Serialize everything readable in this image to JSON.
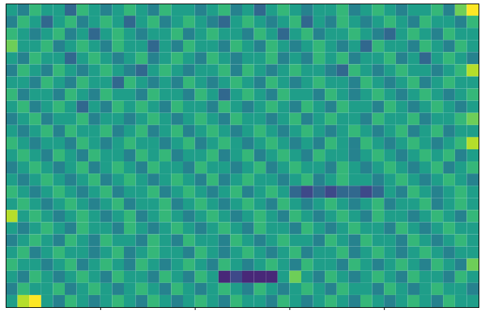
{
  "chart_data": {
    "type": "heatmap",
    "cells": [
      [
        5,
        4,
        6,
        5,
        5,
        3,
        6,
        5,
        4,
        5,
        6,
        5,
        4,
        6,
        5,
        5,
        4,
        5,
        6,
        4,
        5,
        3,
        5,
        6,
        5,
        4,
        5,
        5,
        6,
        4,
        5,
        6,
        5,
        4,
        5,
        5,
        6,
        4,
        7,
        9
      ],
      [
        4,
        6,
        5,
        3,
        5,
        6,
        4,
        5,
        6,
        5,
        3,
        5,
        6,
        4,
        5,
        6,
        5,
        4,
        3,
        5,
        6,
        5,
        4,
        5,
        6,
        3,
        5,
        4,
        6,
        5,
        4,
        5,
        6,
        5,
        4,
        6,
        5,
        5,
        4,
        6
      ],
      [
        6,
        5,
        4,
        5,
        6,
        4,
        5,
        3,
        5,
        6,
        5,
        4,
        5,
        5,
        6,
        4,
        5,
        6,
        5,
        5,
        4,
        6,
        5,
        3,
        5,
        6,
        4,
        5,
        5,
        6,
        5,
        4,
        3,
        5,
        6,
        5,
        4,
        6,
        5,
        5
      ],
      [
        7,
        5,
        5,
        6,
        4,
        5,
        6,
        5,
        4,
        6,
        5,
        5,
        3,
        5,
        4,
        6,
        5,
        5,
        4,
        6,
        5,
        4,
        6,
        5,
        4,
        5,
        6,
        5,
        4,
        5,
        3,
        6,
        5,
        5,
        4,
        6,
        5,
        4,
        6,
        5
      ],
      [
        5,
        4,
        6,
        5,
        5,
        3,
        5,
        6,
        5,
        4,
        5,
        6,
        4,
        5,
        6,
        5,
        4,
        6,
        5,
        4,
        5,
        5,
        6,
        4,
        5,
        4,
        6,
        5,
        6,
        4,
        5,
        5,
        6,
        4,
        5,
        3,
        5,
        6,
        5,
        4
      ],
      [
        4,
        6,
        5,
        4,
        6,
        5,
        4,
        5,
        6,
        5,
        4,
        3,
        5,
        6,
        5,
        4,
        5,
        5,
        6,
        4,
        6,
        5,
        4,
        5,
        6,
        5,
        5,
        4,
        3,
        6,
        5,
        4,
        5,
        6,
        5,
        5,
        4,
        5,
        6,
        8
      ],
      [
        5,
        5,
        4,
        6,
        5,
        4,
        6,
        5,
        5,
        3,
        6,
        5,
        4,
        5,
        4,
        6,
        5,
        4,
        5,
        6,
        5,
        4,
        6,
        5,
        4,
        5,
        6,
        5,
        5,
        4,
        6,
        5,
        4,
        5,
        6,
        4,
        5,
        6,
        5,
        5
      ],
      [
        6,
        4,
        5,
        5,
        4,
        6,
        5,
        4,
        6,
        5,
        5,
        4,
        6,
        5,
        5,
        4,
        6,
        5,
        3,
        5,
        6,
        5,
        4,
        6,
        5,
        5,
        4,
        6,
        5,
        4,
        5,
        6,
        5,
        4,
        5,
        6,
        5,
        4,
        5,
        6
      ],
      [
        5,
        6,
        4,
        5,
        6,
        5,
        3,
        5,
        4,
        6,
        5,
        6,
        5,
        4,
        6,
        5,
        5,
        4,
        6,
        5,
        4,
        5,
        6,
        5,
        4,
        6,
        5,
        4,
        6,
        5,
        5,
        4,
        6,
        5,
        4,
        5,
        6,
        5,
        4,
        5
      ],
      [
        4,
        5,
        6,
        4,
        5,
        5,
        6,
        4,
        5,
        5,
        4,
        5,
        6,
        5,
        4,
        5,
        6,
        5,
        4,
        6,
        5,
        5,
        4,
        5,
        6,
        4,
        5,
        6,
        5,
        5,
        4,
        6,
        5,
        5,
        6,
        4,
        5,
        5,
        6,
        7
      ],
      [
        5,
        4,
        5,
        6,
        4,
        6,
        5,
        5,
        6,
        4,
        5,
        6,
        4,
        5,
        6,
        4,
        5,
        6,
        5,
        4,
        5,
        6,
        5,
        4,
        5,
        6,
        5,
        4,
        5,
        6,
        5,
        4,
        5,
        6,
        4,
        5,
        6,
        4,
        5,
        5
      ],
      [
        6,
        5,
        4,
        5,
        5,
        4,
        6,
        5,
        4,
        5,
        6,
        5,
        5,
        4,
        5,
        6,
        4,
        5,
        6,
        5,
        4,
        5,
        6,
        5,
        4,
        5,
        4,
        6,
        5,
        4,
        6,
        5,
        4,
        5,
        6,
        5,
        4,
        5,
        6,
        8
      ],
      [
        5,
        6,
        5,
        4,
        6,
        5,
        4,
        6,
        5,
        5,
        4,
        6,
        5,
        6,
        4,
        5,
        5,
        6,
        4,
        5,
        6,
        4,
        5,
        6,
        5,
        4,
        6,
        5,
        5,
        4,
        5,
        6,
        5,
        4,
        5,
        6,
        5,
        6,
        4,
        5
      ],
      [
        4,
        5,
        6,
        5,
        4,
        5,
        6,
        4,
        5,
        6,
        5,
        4,
        6,
        5,
        5,
        4,
        6,
        5,
        5,
        4,
        5,
        6,
        4,
        5,
        6,
        5,
        5,
        4,
        6,
        5,
        4,
        5,
        6,
        5,
        4,
        5,
        6,
        4,
        5,
        6
      ],
      [
        5,
        4,
        5,
        6,
        5,
        4,
        5,
        6,
        4,
        5,
        6,
        5,
        4,
        5,
        6,
        5,
        4,
        6,
        4,
        5,
        6,
        5,
        5,
        4,
        5,
        6,
        4,
        5,
        6,
        5,
        5,
        4,
        5,
        6,
        5,
        4,
        5,
        6,
        5,
        4
      ],
      [
        6,
        5,
        4,
        5,
        6,
        5,
        4,
        5,
        6,
        4,
        5,
        5,
        6,
        4,
        5,
        6,
        5,
        4,
        5,
        6,
        4,
        5,
        6,
        5,
        3,
        2,
        3,
        2,
        3,
        3,
        2,
        3,
        5,
        4,
        6,
        5,
        4,
        5,
        6,
        5
      ],
      [
        5,
        6,
        5,
        4,
        5,
        6,
        5,
        4,
        5,
        6,
        4,
        5,
        5,
        6,
        4,
        5,
        6,
        5,
        4,
        5,
        6,
        5,
        4,
        6,
        5,
        4,
        5,
        6,
        5,
        4,
        5,
        6,
        4,
        5,
        5,
        6,
        4,
        5,
        6,
        5
      ],
      [
        8,
        5,
        6,
        5,
        4,
        5,
        6,
        5,
        4,
        5,
        6,
        4,
        5,
        6,
        5,
        4,
        5,
        6,
        5,
        4,
        5,
        6,
        5,
        4,
        6,
        5,
        4,
        5,
        6,
        5,
        4,
        6,
        5,
        5,
        4,
        5,
        6,
        5,
        4,
        6
      ],
      [
        5,
        4,
        5,
        6,
        5,
        4,
        6,
        5,
        5,
        4,
        6,
        5,
        4,
        5,
        6,
        5,
        4,
        5,
        6,
        5,
        4,
        6,
        5,
        5,
        4,
        6,
        5,
        4,
        5,
        6,
        5,
        5,
        4,
        6,
        5,
        4,
        5,
        6,
        5,
        5
      ],
      [
        4,
        5,
        6,
        5,
        4,
        6,
        5,
        4,
        6,
        5,
        5,
        4,
        6,
        5,
        4,
        6,
        5,
        5,
        4,
        6,
        5,
        4,
        5,
        6,
        5,
        5,
        4,
        6,
        5,
        4,
        6,
        5,
        5,
        4,
        6,
        5,
        4,
        5,
        6,
        5
      ],
      [
        5,
        6,
        4,
        5,
        6,
        5,
        5,
        4,
        5,
        6,
        4,
        5,
        6,
        5,
        5,
        4,
        6,
        5,
        4,
        5,
        6,
        5,
        4,
        5,
        6,
        4,
        5,
        5,
        6,
        4,
        5,
        6,
        5,
        4,
        5,
        6,
        5,
        4,
        5,
        5
      ],
      [
        6,
        5,
        5,
        4,
        5,
        6,
        4,
        5,
        6,
        5,
        4,
        6,
        5,
        4,
        5,
        6,
        5,
        4,
        6,
        5,
        4,
        5,
        6,
        5,
        4,
        6,
        5,
        5,
        4,
        6,
        5,
        4,
        5,
        6,
        5,
        4,
        6,
        5,
        4,
        7
      ],
      [
        5,
        4,
        6,
        5,
        4,
        5,
        6,
        5,
        4,
        6,
        5,
        5,
        4,
        6,
        5,
        4,
        6,
        5,
        1,
        2,
        1,
        1,
        1,
        5,
        7,
        5,
        4,
        6,
        5,
        4,
        5,
        6,
        5,
        4,
        6,
        5,
        5,
        4,
        6,
        5
      ],
      [
        4,
        6,
        5,
        5,
        6,
        4,
        5,
        6,
        5,
        4,
        5,
        6,
        5,
        4,
        6,
        5,
        4,
        5,
        6,
        5,
        4,
        6,
        5,
        4,
        5,
        6,
        5,
        4,
        6,
        5,
        5,
        4,
        6,
        5,
        4,
        5,
        6,
        5,
        5,
        4
      ],
      [
        5,
        8,
        9,
        5,
        4,
        6,
        5,
        4,
        5,
        6,
        5,
        4,
        6,
        5,
        4,
        5,
        6,
        5,
        4,
        6,
        5,
        5,
        4,
        6,
        5,
        4,
        5,
        6,
        5,
        4,
        6,
        5,
        4,
        5,
        6,
        5,
        4,
        6,
        5,
        5
      ]
    ],
    "xlim": [
      0,
      40
    ],
    "ylim": [
      0,
      25
    ],
    "xticks": [
      8,
      16,
      24,
      32
    ],
    "yticks": [],
    "zlim": [
      0,
      9
    ],
    "color": "viridis",
    "tick_labels": false
  }
}
